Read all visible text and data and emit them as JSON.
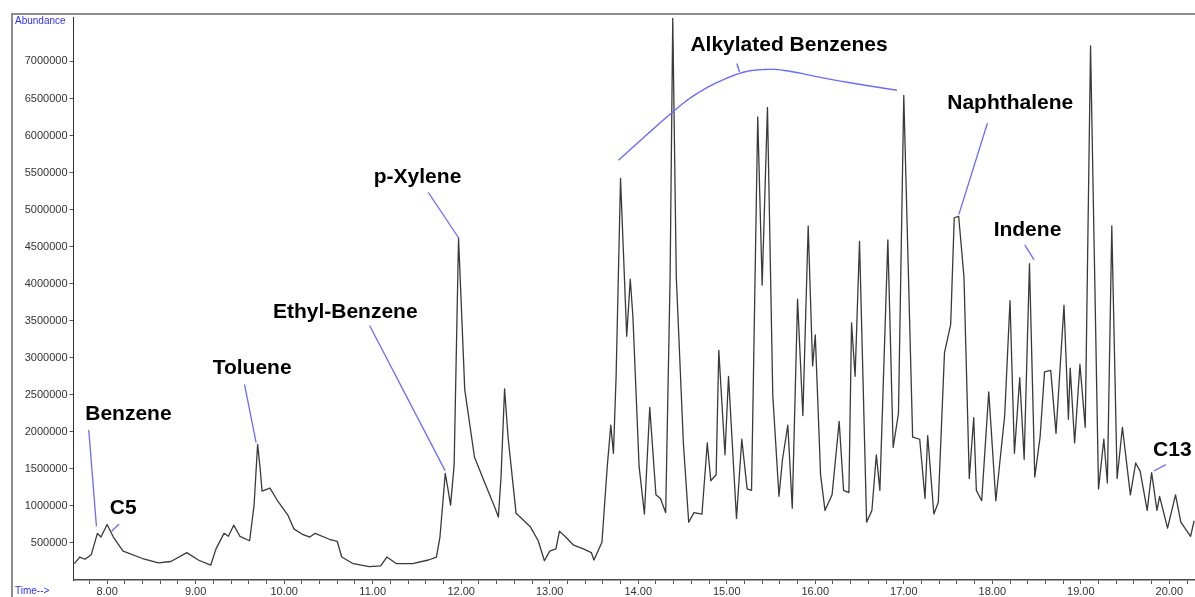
{
  "chart_data": {
    "type": "line",
    "xlabel": "Time-->",
    "ylabel": "Abundance",
    "x": [
      7.63,
      7.69,
      7.75,
      7.82,
      7.89,
      7.93,
      8,
      8.07,
      8.18,
      8.4,
      8.58,
      8.72,
      8.9,
      9.03,
      9.17,
      9.23,
      9.32,
      9.37,
      9.43,
      9.5,
      9.61,
      9.66,
      9.7,
      9.73,
      9.75,
      9.84,
      9.93,
      10.04,
      10.11,
      10.2,
      10.29,
      10.35,
      10.51,
      10.6,
      10.65,
      10.78,
      10.96,
      11.09,
      11.16,
      11.27,
      11.45,
      11.63,
      11.72,
      11.76,
      11.82,
      11.85,
      11.88,
      11.92,
      11.97,
      12.04,
      12.15,
      12.26,
      12.37,
      12.42,
      12.45,
      12.49,
      12.53,
      12.62,
      12.71,
      12.78,
      12.87,
      12.94,
      13,
      13.07,
      13.11,
      13.18,
      13.27,
      13.38,
      13.47,
      13.5,
      13.59,
      13.65,
      13.69,
      13.72,
      13.75,
      13.8,
      13.87,
      13.91,
      13.94,
      14.01,
      14.07,
      14.13,
      14.2,
      14.25,
      14.31,
      14.36,
      14.39,
      14.43,
      14.51,
      14.57,
      14.63,
      14.72,
      14.78,
      14.82,
      14.88,
      14.91,
      14.98,
      15.02,
      15.11,
      15.17,
      15.23,
      15.28,
      15.35,
      15.4,
      15.46,
      15.52,
      15.59,
      15.63,
      15.69,
      15.74,
      15.8,
      15.86,
      15.92,
      15.97,
      16,
      16.06,
      16.11,
      16.19,
      16.27,
      16.32,
      16.38,
      16.41,
      16.45,
      16.5,
      16.58,
      16.64,
      16.69,
      16.73,
      16.82,
      16.88,
      16.94,
      17,
      17.1,
      17.18,
      17.24,
      17.27,
      17.34,
      17.39,
      17.46,
      17.53,
      17.57,
      17.62,
      17.68,
      17.74,
      17.79,
      17.82,
      17.88,
      17.96,
      18.04,
      18.14,
      18.2,
      18.25,
      18.31,
      18.36,
      18.42,
      18.48,
      18.54,
      18.59,
      18.66,
      18.72,
      18.81,
      18.86,
      18.88,
      18.93,
      18.99,
      19.05,
      19.11,
      19.2,
      19.26,
      19.3,
      19.35,
      19.41,
      19.47,
      19.56,
      19.62,
      19.67,
      19.75,
      19.8,
      19.86,
      19.89,
      19.98,
      20.07,
      20.13,
      20.24,
      20.28
    ],
    "series": [
      {
        "color": "#3a3a3a",
        "values": [
          220000,
          310000,
          280000,
          340000,
          630000,
          580000,
          750000,
          580000,
          390000,
          290000,
          230000,
          250000,
          370000,
          270000,
          200000,
          420000,
          630000,
          590000,
          740000,
          590000,
          530000,
          1010000,
          1830000,
          1490000,
          1200000,
          1240000,
          1060000,
          880000,
          690000,
          620000,
          580000,
          630000,
          550000,
          520000,
          310000,
          220000,
          180000,
          190000,
          310000,
          220000,
          220000,
          270000,
          310000,
          580000,
          1440000,
          1230000,
          1010000,
          1550000,
          4620000,
          2570000,
          1660000,
          1330000,
          1010000,
          850000,
          1390000,
          2580000,
          1920000,
          900000,
          800000,
          720000,
          530000,
          260000,
          390000,
          420000,
          660000,
          580000,
          470000,
          420000,
          370000,
          270000,
          510000,
          1530000,
          2090000,
          1710000,
          2750000,
          5420000,
          3290000,
          4060000,
          3550000,
          1530000,
          890000,
          2330000,
          1150000,
          1100000,
          910000,
          4090000,
          7580000,
          4090000,
          1850000,
          780000,
          910000,
          890000,
          1850000,
          1340000,
          1420000,
          3100000,
          1690000,
          2750000,
          830000,
          1900000,
          1230000,
          1210000,
          6250000,
          3980000,
          6380000,
          2490000,
          1130000,
          1630000,
          2090000,
          970000,
          3790000,
          2220000,
          4780000,
          2890000,
          3310000,
          1420000,
          940000,
          1150000,
          2140000,
          1210000,
          1180000,
          3470000,
          2750000,
          4570000,
          780000,
          940000,
          1690000,
          1210000,
          4590000,
          1790000,
          2250000,
          6540000,
          1930000,
          1900000,
          1100000,
          1950000,
          890000,
          1050000,
          3070000,
          3450000,
          4890000,
          4910000,
          4090000,
          1370000,
          2190000,
          1210000,
          1070000,
          2540000,
          1070000,
          2220000,
          3770000,
          1710000,
          2730000,
          1630000,
          4270000,
          1390000,
          1930000,
          2810000,
          2830000,
          1980000,
          3710000,
          2170000,
          2860000,
          1850000,
          2910000,
          2060000,
          7210000,
          1230000,
          1900000,
          1310000,
          4780000,
          1370000,
          2060000,
          1150000,
          1580000,
          1470000,
          940000,
          1450000,
          940000,
          1130000,
          700000,
          1150000,
          780000,
          590000,
          800000
        ]
      }
    ],
    "xlim": [
      7.62,
      20.29
    ],
    "ylim": [
      0,
      7600000
    ],
    "xticks": [
      {
        "value": 7.8,
        "label": null
      },
      {
        "value": 8,
        "label": "8.00"
      },
      {
        "value": 8.2,
        "label": null
      },
      {
        "value": 8.4,
        "label": null
      },
      {
        "value": 8.6,
        "label": null
      },
      {
        "value": 8.8,
        "label": null
      },
      {
        "value": 9,
        "label": "9.00"
      },
      {
        "value": 9.2,
        "label": null
      },
      {
        "value": 9.4,
        "label": null
      },
      {
        "value": 9.6,
        "label": null
      },
      {
        "value": 9.8,
        "label": null
      },
      {
        "value": 10,
        "label": "10.00"
      },
      {
        "value": 10.2,
        "label": null
      },
      {
        "value": 10.4,
        "label": null
      },
      {
        "value": 10.6,
        "label": null
      },
      {
        "value": 10.8,
        "label": null
      },
      {
        "value": 11,
        "label": "11.00"
      },
      {
        "value": 11.2,
        "label": null
      },
      {
        "value": 11.4,
        "label": null
      },
      {
        "value": 11.6,
        "label": null
      },
      {
        "value": 11.8,
        "label": null
      },
      {
        "value": 12,
        "label": "12.00"
      },
      {
        "value": 12.2,
        "label": null
      },
      {
        "value": 12.4,
        "label": null
      },
      {
        "value": 12.6,
        "label": null
      },
      {
        "value": 12.8,
        "label": null
      },
      {
        "value": 13,
        "label": "13.00"
      },
      {
        "value": 13.2,
        "label": null
      },
      {
        "value": 13.4,
        "label": null
      },
      {
        "value": 13.6,
        "label": null
      },
      {
        "value": 13.8,
        "label": null
      },
      {
        "value": 14,
        "label": "14.00"
      },
      {
        "value": 14.2,
        "label": null
      },
      {
        "value": 14.4,
        "label": null
      },
      {
        "value": 14.6,
        "label": null
      },
      {
        "value": 14.8,
        "label": null
      },
      {
        "value": 15,
        "label": "15.00"
      },
      {
        "value": 15.2,
        "label": null
      },
      {
        "value": 15.4,
        "label": null
      },
      {
        "value": 15.6,
        "label": null
      },
      {
        "value": 15.8,
        "label": null
      },
      {
        "value": 16,
        "label": "16.00"
      },
      {
        "value": 16.2,
        "label": null
      },
      {
        "value": 16.4,
        "label": null
      },
      {
        "value": 16.6,
        "label": null
      },
      {
        "value": 16.8,
        "label": null
      },
      {
        "value": 17,
        "label": "17.00"
      },
      {
        "value": 17.2,
        "label": null
      },
      {
        "value": 17.4,
        "label": null
      },
      {
        "value": 17.6,
        "label": null
      },
      {
        "value": 17.8,
        "label": null
      },
      {
        "value": 18,
        "label": "18.00"
      },
      {
        "value": 18.2,
        "label": null
      },
      {
        "value": 18.4,
        "label": null
      },
      {
        "value": 18.6,
        "label": null
      },
      {
        "value": 18.8,
        "label": null
      },
      {
        "value": 19,
        "label": "19.00"
      },
      {
        "value": 19.2,
        "label": null
      },
      {
        "value": 19.4,
        "label": null
      },
      {
        "value": 19.6,
        "label": null
      },
      {
        "value": 19.8,
        "label": null
      },
      {
        "value": 20,
        "label": "20.00"
      },
      {
        "value": 20.2,
        "label": null
      }
    ],
    "yticks": [
      500000,
      1000000,
      1500000,
      2000000,
      2500000,
      3000000,
      3500000,
      4000000,
      4500000,
      5000000,
      5500000,
      6000000,
      6500000,
      7000000
    ],
    "annotations": [
      {
        "text": "Benzene",
        "x": 7.89,
        "y": 630000
      },
      {
        "text": "C5",
        "x": 8,
        "y": 750000
      },
      {
        "text": "Toluene",
        "x": 9.7,
        "y": 1830000
      },
      {
        "text": "Ethyl-Benzene",
        "x": 11.82,
        "y": 1440000
      },
      {
        "text": "p-Xylene",
        "x": 11.97,
        "y": 4620000
      },
      "Alkylated Benzenes",
      {
        "text": "Naphthalene",
        "x": 17.62,
        "y": 4910000
      },
      {
        "text": "Indene",
        "x": 18.42,
        "y": 4270000
      },
      {
        "text": "C13",
        "x": 19.8,
        "y": 1450000
      }
    ]
  }
}
